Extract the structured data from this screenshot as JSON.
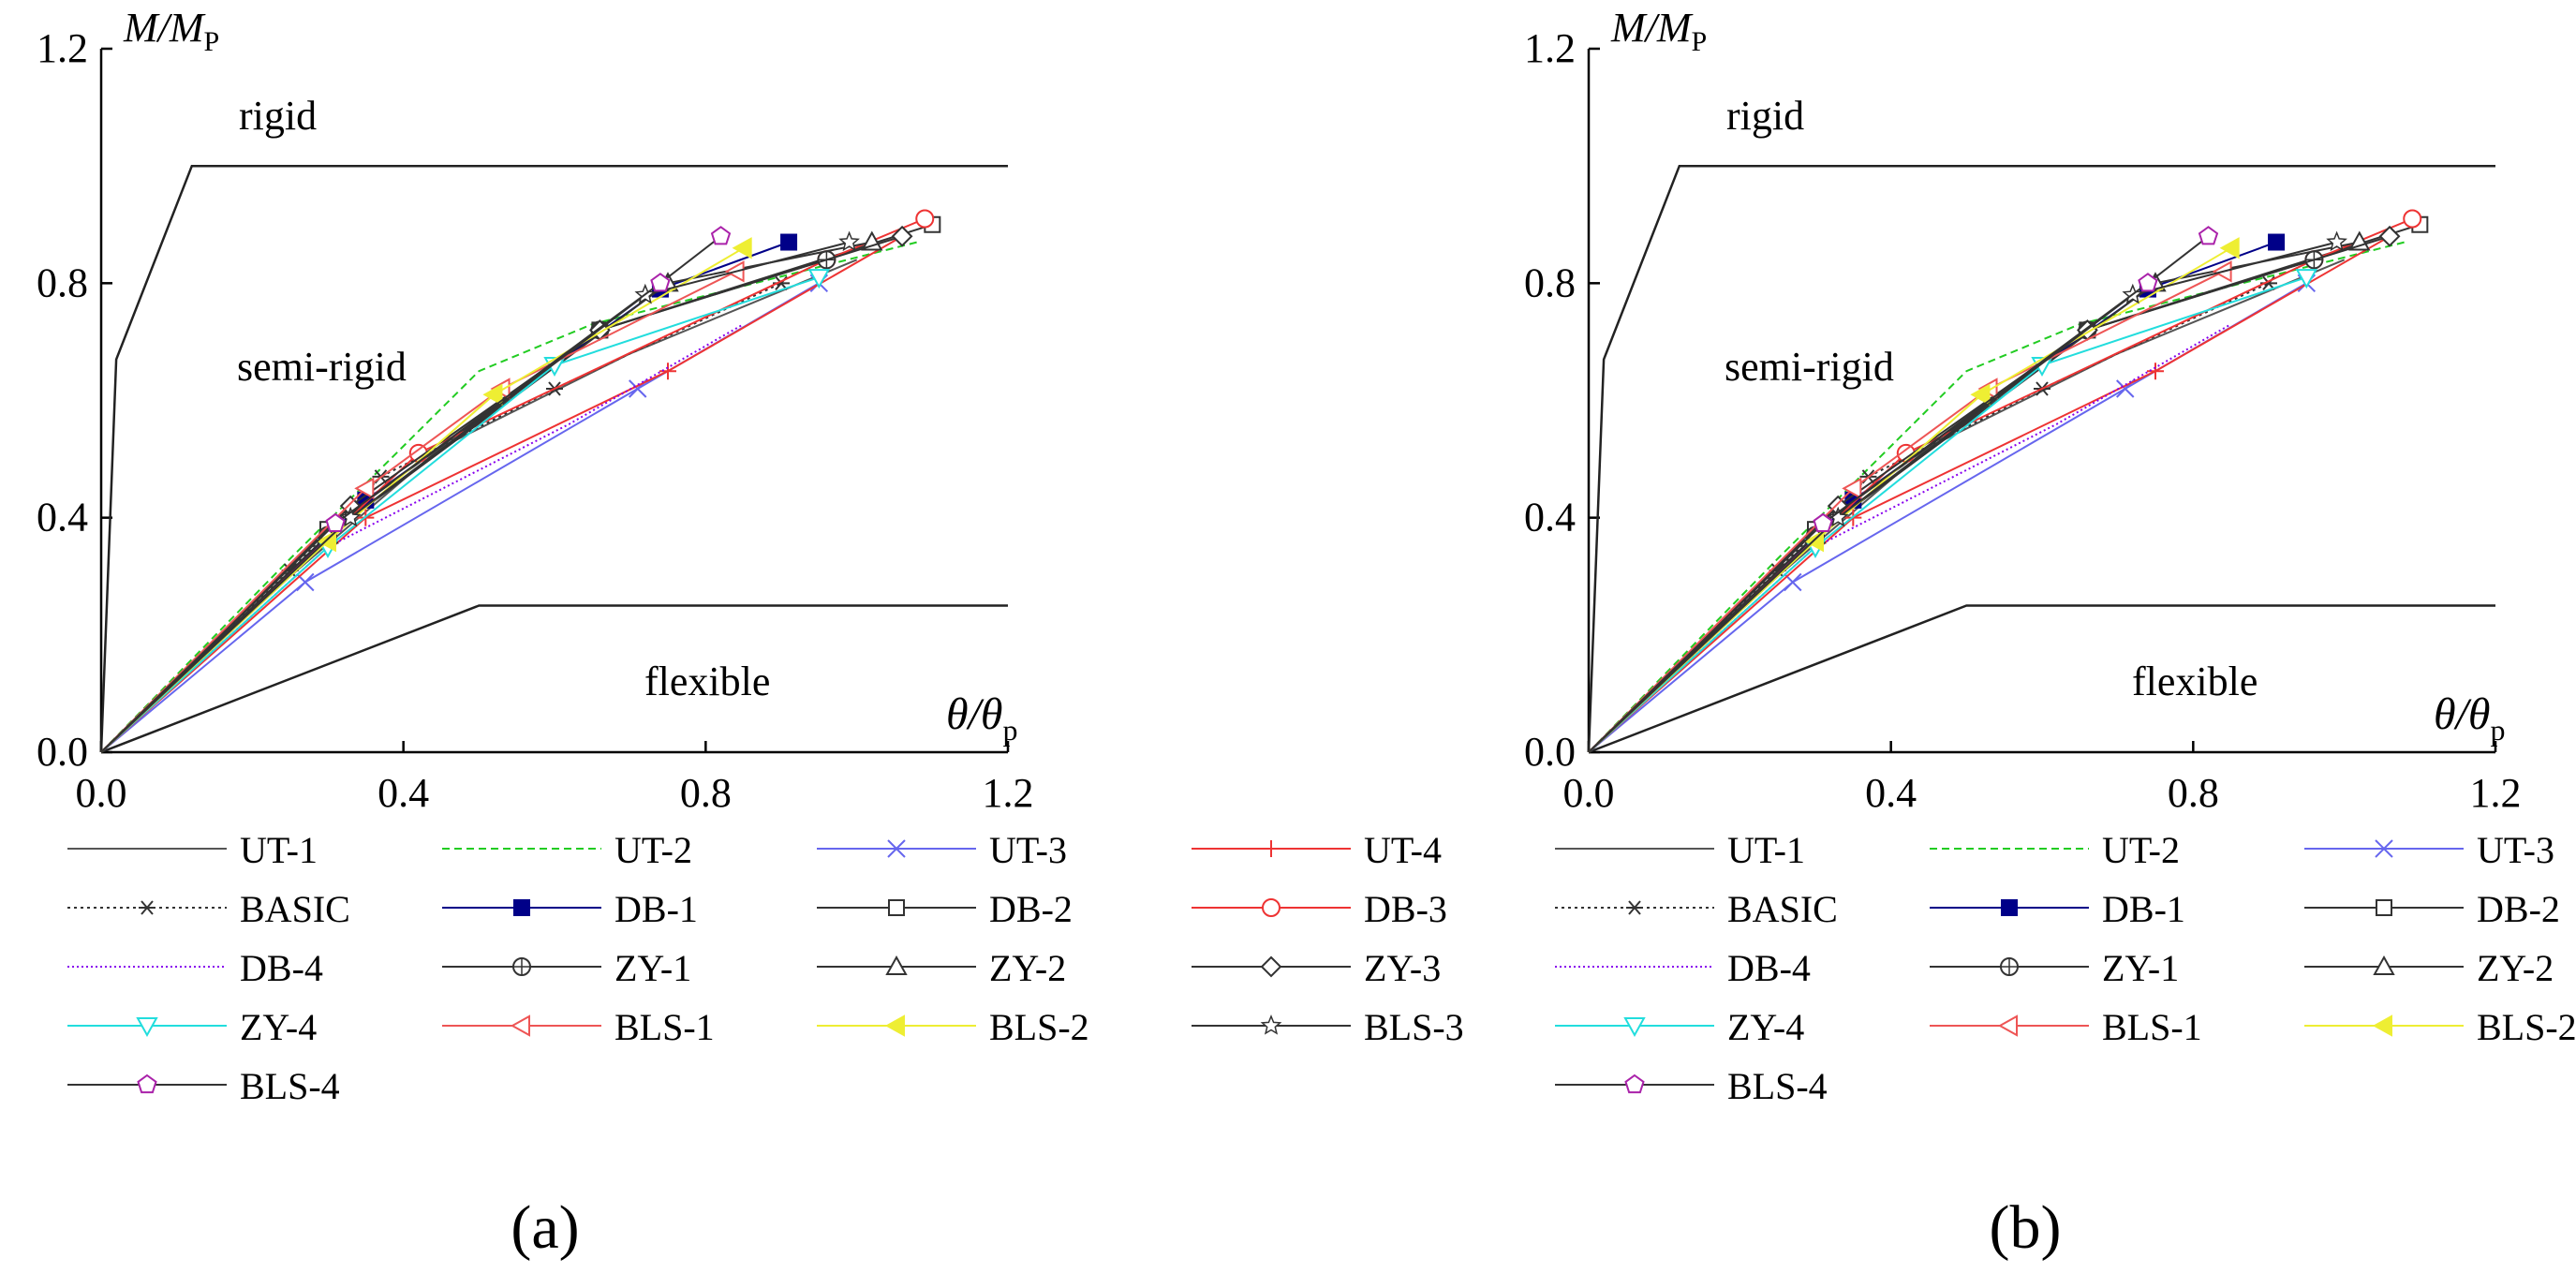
{
  "panels": [
    {
      "label": "(a)",
      "chart_index": 0
    },
    {
      "label": "(b)",
      "chart_index": 1
    }
  ],
  "chart_data": [
    {
      "type": "line",
      "xlim": [
        0,
        1.2
      ],
      "ylim": [
        0,
        1.2
      ],
      "xticks": [
        "0.0",
        "0.4",
        "0.8",
        "1.2"
      ],
      "yticks": [
        "0.0",
        "0.4",
        "0.8",
        "1.2"
      ],
      "ylabel_main": "M/M",
      "ylabel_sub": "P",
      "xlabel_main": "θ/θ",
      "xlabel_sub": "p",
      "region_labels": {
        "rigid": "rigid",
        "semi": "semi-rigid",
        "flexible": "flexible"
      },
      "boundaries": {
        "rigid": {
          "x": [
            0,
            0.02,
            0.12,
            1.2
          ],
          "y": [
            0,
            0.67,
            1.0,
            1.0
          ]
        },
        "flexible": {
          "x": [
            0,
            0.5,
            1.2
          ],
          "y": [
            0,
            0.25,
            0.25
          ]
        }
      },
      "series": [
        {
          "name": "UT-1",
          "color": "#555555",
          "dash": "",
          "marker": "none",
          "x": [
            0,
            0.25,
            0.45,
            0.7,
            1.0
          ],
          "y": [
            0,
            0.3,
            0.52,
            0.68,
            0.84
          ]
        },
        {
          "name": "UT-2",
          "color": "#22cc22",
          "dash": "8,5",
          "marker": "none",
          "x": [
            0,
            0.25,
            0.5,
            0.65,
            1.08
          ],
          "y": [
            0,
            0.33,
            0.65,
            0.73,
            0.87
          ]
        },
        {
          "name": "UT-3",
          "color": "#6666ee",
          "dash": "",
          "marker": "x",
          "x": [
            0,
            0.27,
            0.71,
            0.95
          ],
          "y": [
            0,
            0.29,
            0.62,
            0.8
          ]
        },
        {
          "name": "UT-4",
          "color": "#ee3333",
          "dash": "",
          "marker": "plus",
          "x": [
            0,
            0.35,
            0.75,
            1.06
          ],
          "y": [
            0,
            0.4,
            0.65,
            0.88
          ]
        },
        {
          "name": "BASIC",
          "color": "#333333",
          "dash": "3,4",
          "marker": "star",
          "x": [
            0,
            0.25,
            0.37,
            0.6,
            0.9
          ],
          "y": [
            0,
            0.31,
            0.47,
            0.62,
            0.8
          ]
        },
        {
          "name": "DB-1",
          "color": "#000088",
          "dash": "",
          "marker": "square-filled",
          "x": [
            0,
            0.35,
            0.74,
            0.91
          ],
          "y": [
            0,
            0.43,
            0.79,
            0.87
          ]
        },
        {
          "name": "DB-2",
          "color": "#333333",
          "dash": "",
          "marker": "square",
          "x": [
            0,
            0.3,
            0.66,
            1.1
          ],
          "y": [
            0,
            0.38,
            0.72,
            0.9
          ]
        },
        {
          "name": "DB-3",
          "color": "#ee3333",
          "dash": "",
          "marker": "circle",
          "x": [
            0,
            0.42,
            0.96,
            1.09
          ],
          "y": [
            0,
            0.51,
            0.84,
            0.91
          ]
        },
        {
          "name": "DB-4",
          "color": "#8800ee",
          "dash": "2,3",
          "marker": "none",
          "x": [
            0,
            0.3,
            0.62,
            0.85
          ],
          "y": [
            0,
            0.35,
            0.56,
            0.73
          ]
        },
        {
          "name": "ZY-1",
          "color": "#333333",
          "dash": "",
          "marker": "circle-plus",
          "x": [
            0,
            0.3,
            0.66,
            0.96
          ],
          "y": [
            0,
            0.37,
            0.72,
            0.84
          ]
        },
        {
          "name": "ZY-2",
          "color": "#333333",
          "dash": "",
          "marker": "triangle",
          "x": [
            0,
            0.3,
            0.75,
            1.02
          ],
          "y": [
            0,
            0.37,
            0.8,
            0.87
          ]
        },
        {
          "name": "ZY-3",
          "color": "#333333",
          "dash": "",
          "marker": "diamond",
          "x": [
            0,
            0.33,
            0.66,
            1.06
          ],
          "y": [
            0,
            0.42,
            0.72,
            0.88
          ]
        },
        {
          "name": "ZY-4",
          "color": "#22dddd",
          "dash": "",
          "marker": "triangle-down",
          "x": [
            0,
            0.3,
            0.6,
            0.95
          ],
          "y": [
            0,
            0.35,
            0.66,
            0.81
          ]
        },
        {
          "name": "BLS-1",
          "color": "#ee5555",
          "dash": "",
          "marker": "triangle-left",
          "x": [
            0,
            0.35,
            0.53,
            0.84
          ],
          "y": [
            0,
            0.45,
            0.62,
            0.82
          ]
        },
        {
          "name": "BLS-2",
          "color": "#eeee33",
          "dash": "",
          "marker": "triangle-left-filled",
          "x": [
            0,
            0.3,
            0.52,
            0.85
          ],
          "y": [
            0,
            0.36,
            0.61,
            0.86
          ]
        },
        {
          "name": "BLS-3",
          "color": "#333333",
          "dash": "",
          "marker": "star5",
          "x": [
            0,
            0.33,
            0.72,
            0.99
          ],
          "y": [
            0,
            0.4,
            0.78,
            0.87
          ]
        },
        {
          "name": "BLS-4",
          "color": "#333333",
          "marker_color": "#aa22aa",
          "dash": "",
          "marker": "pentagon",
          "x": [
            0,
            0.31,
            0.74,
            0.82
          ],
          "y": [
            0,
            0.39,
            0.8,
            0.88
          ]
        }
      ]
    },
    {
      "type": "line",
      "xlim": [
        0,
        1.2
      ],
      "ylim": [
        0,
        1.2
      ],
      "xticks": [
        "0.0",
        "0.4",
        "0.8",
        "1.2"
      ],
      "yticks": [
        "0.0",
        "0.4",
        "0.8",
        "1.2"
      ],
      "ylabel_main": "M/M",
      "ylabel_sub": "P",
      "xlabel_main": "θ/θ",
      "xlabel_sub": "p",
      "region_labels": {
        "rigid": "rigid",
        "semi": "semi-rigid",
        "flexible": "flexible"
      },
      "boundaries": {
        "rigid": {
          "x": [
            0,
            0.02,
            0.12,
            1.2
          ],
          "y": [
            0,
            0.67,
            1.0,
            1.0
          ]
        },
        "flexible": {
          "x": [
            0,
            0.5,
            1.2
          ],
          "y": [
            0,
            0.25,
            0.25
          ]
        }
      },
      "series": [
        {
          "name": "UT-1",
          "color": "#555555",
          "dash": "",
          "marker": "none",
          "x": [
            0,
            0.25,
            0.45,
            0.7,
            1.0
          ],
          "y": [
            0,
            0.3,
            0.52,
            0.68,
            0.84
          ]
        },
        {
          "name": "UT-2",
          "color": "#22cc22",
          "dash": "8,5",
          "marker": "none",
          "x": [
            0,
            0.25,
            0.5,
            0.65,
            1.08
          ],
          "y": [
            0,
            0.33,
            0.65,
            0.73,
            0.87
          ]
        },
        {
          "name": "UT-3",
          "color": "#6666ee",
          "dash": "",
          "marker": "x",
          "x": [
            0,
            0.27,
            0.71,
            0.95
          ],
          "y": [
            0,
            0.29,
            0.62,
            0.8
          ]
        },
        {
          "name": "UT-4",
          "color": "#ee3333",
          "dash": "",
          "marker": "plus",
          "x": [
            0,
            0.35,
            0.75,
            1.06
          ],
          "y": [
            0,
            0.4,
            0.65,
            0.88
          ]
        },
        {
          "name": "BASIC",
          "color": "#333333",
          "dash": "3,4",
          "marker": "star",
          "x": [
            0,
            0.25,
            0.37,
            0.6,
            0.9
          ],
          "y": [
            0,
            0.31,
            0.47,
            0.62,
            0.8
          ]
        },
        {
          "name": "DB-1",
          "color": "#000088",
          "dash": "",
          "marker": "square-filled",
          "x": [
            0,
            0.35,
            0.74,
            0.91
          ],
          "y": [
            0,
            0.43,
            0.79,
            0.87
          ]
        },
        {
          "name": "DB-2",
          "color": "#333333",
          "dash": "",
          "marker": "square",
          "x": [
            0,
            0.3,
            0.66,
            1.1
          ],
          "y": [
            0,
            0.38,
            0.72,
            0.9
          ]
        },
        {
          "name": "DB-3",
          "color": "#ee3333",
          "dash": "",
          "marker": "circle",
          "x": [
            0,
            0.42,
            0.96,
            1.09
          ],
          "y": [
            0,
            0.51,
            0.84,
            0.91
          ]
        },
        {
          "name": "DB-4",
          "color": "#8800ee",
          "dash": "2,3",
          "marker": "none",
          "x": [
            0,
            0.3,
            0.62,
            0.85
          ],
          "y": [
            0,
            0.35,
            0.56,
            0.73
          ]
        },
        {
          "name": "ZY-1",
          "color": "#333333",
          "dash": "",
          "marker": "circle-plus",
          "x": [
            0,
            0.3,
            0.66,
            0.96
          ],
          "y": [
            0,
            0.37,
            0.72,
            0.84
          ]
        },
        {
          "name": "ZY-2",
          "color": "#333333",
          "dash": "",
          "marker": "triangle",
          "x": [
            0,
            0.3,
            0.75,
            1.02
          ],
          "y": [
            0,
            0.37,
            0.8,
            0.87
          ]
        },
        {
          "name": "ZY-3",
          "color": "#333333",
          "dash": "",
          "marker": "diamond",
          "x": [
            0,
            0.33,
            0.66,
            1.06
          ],
          "y": [
            0,
            0.42,
            0.72,
            0.88
          ]
        },
        {
          "name": "ZY-4",
          "color": "#22dddd",
          "dash": "",
          "marker": "triangle-down",
          "x": [
            0,
            0.3,
            0.6,
            0.95
          ],
          "y": [
            0,
            0.35,
            0.66,
            0.81
          ]
        },
        {
          "name": "BLS-1",
          "color": "#ee5555",
          "dash": "",
          "marker": "triangle-left",
          "x": [
            0,
            0.35,
            0.53,
            0.84
          ],
          "y": [
            0,
            0.45,
            0.62,
            0.82
          ]
        },
        {
          "name": "BLS-2",
          "color": "#eeee33",
          "dash": "",
          "marker": "triangle-left-filled",
          "x": [
            0,
            0.3,
            0.52,
            0.85
          ],
          "y": [
            0,
            0.36,
            0.61,
            0.86
          ]
        },
        {
          "name": "BLS-3",
          "color": "#333333",
          "dash": "",
          "marker": "star5",
          "x": [
            0,
            0.33,
            0.72,
            0.99
          ],
          "y": [
            0,
            0.4,
            0.78,
            0.87
          ]
        },
        {
          "name": "BLS-4",
          "color": "#333333",
          "marker_color": "#aa22aa",
          "dash": "",
          "marker": "pentagon",
          "x": [
            0,
            0.31,
            0.74,
            0.82
          ],
          "y": [
            0,
            0.39,
            0.8,
            0.88
          ]
        }
      ]
    }
  ]
}
